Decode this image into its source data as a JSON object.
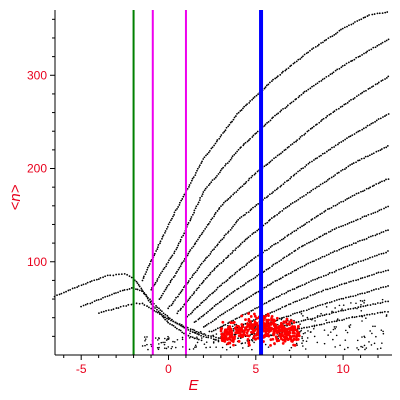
{
  "chart_data": {
    "type": "scatter",
    "title": "",
    "xlabel": "E",
    "ylabel": "<n>",
    "xlim": [
      -6.5,
      12.8
    ],
    "ylim": [
      0,
      370
    ],
    "x_ticks": [
      -5,
      0,
      5,
      10
    ],
    "y_ticks": [
      100,
      200,
      300
    ],
    "x_tick_labels": [
      "-5",
      "0",
      "5",
      "10"
    ],
    "y_tick_labels": [
      "100",
      "200",
      "300"
    ],
    "colors": {
      "axis": "#e8001c",
      "points": "#000000",
      "highlight_points": "#ff0000",
      "green_line": "#008000",
      "magenta_line": "#ee00ee",
      "blue_line": "#0000ff"
    },
    "vertical_lines": [
      {
        "x": -2.0,
        "color": "green"
      },
      {
        "x": -0.9,
        "color": "magenta"
      },
      {
        "x": 1.0,
        "color": "magenta"
      },
      {
        "x": 5.3,
        "color": "blue"
      }
    ],
    "series": [
      {
        "color": "black",
        "points": [
          [
            -6.5,
            63
          ],
          [
            -5.0,
            75
          ],
          [
            -3.5,
            85
          ],
          [
            -2.5,
            87
          ],
          [
            -2.0,
            82
          ],
          [
            -1.5,
            70
          ],
          [
            -1.0,
            55
          ],
          [
            0.0,
            35
          ],
          [
            1.0,
            22
          ],
          [
            1.5,
            18
          ],
          [
            2.0,
            15
          ]
        ]
      },
      {
        "color": "black",
        "points": [
          [
            -5.0,
            52
          ],
          [
            -3.5,
            63
          ],
          [
            -2.5,
            70
          ],
          [
            -2.0,
            72
          ],
          [
            -1.5,
            68
          ],
          [
            -1.0,
            58
          ],
          [
            0.0,
            40
          ],
          [
            1.0,
            28
          ],
          [
            2.0,
            20
          ],
          [
            3.0,
            15
          ]
        ]
      },
      {
        "color": "black",
        "points": [
          [
            -4.0,
            45
          ],
          [
            -3.0,
            50
          ],
          [
            -2.0,
            55
          ],
          [
            -1.5,
            55
          ],
          [
            -1.0,
            50
          ],
          [
            0.0,
            38
          ],
          [
            1.0,
            30
          ],
          [
            2.0,
            22
          ],
          [
            3.0,
            18
          ]
        ]
      },
      {
        "color": "black",
        "points": [
          [
            -1.5,
            80
          ],
          [
            0.0,
            140
          ],
          [
            2.0,
            210
          ],
          [
            4.0,
            260
          ],
          [
            6.0,
            295
          ],
          [
            8.0,
            325
          ],
          [
            10.0,
            350
          ],
          [
            11.5,
            365
          ],
          [
            12.7,
            368
          ]
        ]
      },
      {
        "color": "black",
        "points": [
          [
            -1.0,
            70
          ],
          [
            0.5,
            115
          ],
          [
            2.0,
            175
          ],
          [
            4.0,
            220
          ],
          [
            6.0,
            255
          ],
          [
            8.0,
            285
          ],
          [
            10.0,
            310
          ],
          [
            12.7,
            340
          ]
        ]
      },
      {
        "color": "black",
        "points": [
          [
            -0.5,
            60
          ],
          [
            1.0,
            105
          ],
          [
            3.0,
            160
          ],
          [
            5.0,
            195
          ],
          [
            7.0,
            225
          ],
          [
            9.0,
            255
          ],
          [
            11.0,
            280
          ],
          [
            12.7,
            300
          ]
        ]
      },
      {
        "color": "black",
        "points": [
          [
            0.0,
            50
          ],
          [
            2.0,
            100
          ],
          [
            4.0,
            145
          ],
          [
            6.0,
            175
          ],
          [
            8.0,
            205
          ],
          [
            10.0,
            230
          ],
          [
            12.7,
            260
          ]
        ]
      },
      {
        "color": "black",
        "points": [
          [
            0.5,
            45
          ],
          [
            2.5,
            90
          ],
          [
            4.5,
            125
          ],
          [
            6.5,
            155
          ],
          [
            8.5,
            180
          ],
          [
            10.5,
            205
          ],
          [
            12.7,
            225
          ]
        ]
      },
      {
        "color": "black",
        "points": [
          [
            1.0,
            40
          ],
          [
            3.0,
            75
          ],
          [
            5.0,
            105
          ],
          [
            7.0,
            130
          ],
          [
            9.0,
            155
          ],
          [
            11.0,
            175
          ],
          [
            12.7,
            190
          ]
        ]
      },
      {
        "color": "black",
        "points": [
          [
            1.5,
            35
          ],
          [
            3.5,
            65
          ],
          [
            5.5,
            90
          ],
          [
            7.5,
            115
          ],
          [
            9.5,
            135
          ],
          [
            12.7,
            160
          ]
        ]
      },
      {
        "color": "black",
        "points": [
          [
            2.0,
            30
          ],
          [
            4.0,
            55
          ],
          [
            6.0,
            78
          ],
          [
            8.0,
            98
          ],
          [
            10.0,
            115
          ],
          [
            12.7,
            135
          ]
        ]
      },
      {
        "color": "black",
        "points": [
          [
            2.5,
            25
          ],
          [
            4.5,
            45
          ],
          [
            6.5,
            65
          ],
          [
            8.5,
            82
          ],
          [
            10.5,
            97
          ],
          [
            12.7,
            112
          ]
        ]
      },
      {
        "color": "black",
        "points": [
          [
            3.0,
            22
          ],
          [
            5.0,
            38
          ],
          [
            7.0,
            55
          ],
          [
            9.0,
            70
          ],
          [
            11.0,
            82
          ],
          [
            12.7,
            92
          ]
        ]
      },
      {
        "color": "black",
        "points": [
          [
            3.5,
            20
          ],
          [
            5.5,
            33
          ],
          [
            7.5,
            46
          ],
          [
            9.5,
            58
          ],
          [
            11.5,
            68
          ],
          [
            12.7,
            75
          ]
        ]
      },
      {
        "color": "black",
        "points": [
          [
            4.0,
            18
          ],
          [
            6.0,
            28
          ],
          [
            8.0,
            38
          ],
          [
            10.0,
            48
          ],
          [
            12.7,
            58
          ]
        ]
      },
      {
        "color": "black",
        "points": [
          [
            4.5,
            15
          ],
          [
            6.5,
            24
          ],
          [
            8.5,
            32
          ],
          [
            10.5,
            40
          ],
          [
            12.7,
            47
          ]
        ]
      }
    ],
    "highlight_cluster": {
      "color": "red",
      "x_range": [
        3.0,
        7.5
      ],
      "y_range": [
        10,
        50
      ]
    }
  }
}
